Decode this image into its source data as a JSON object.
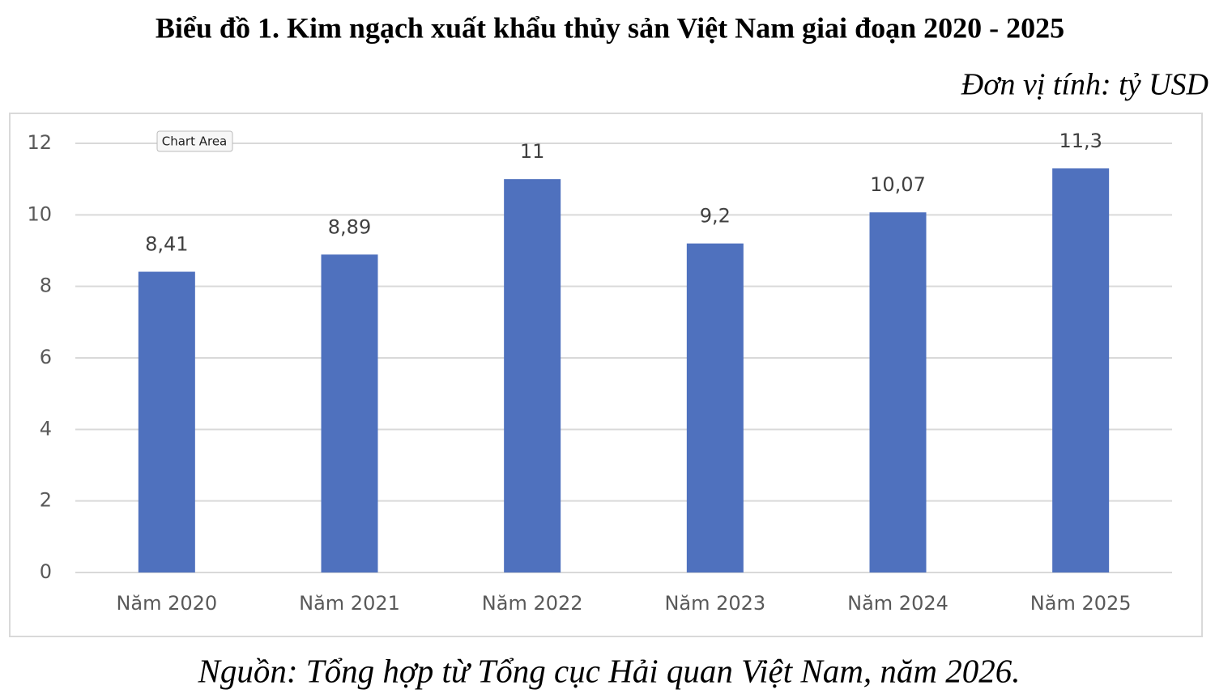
{
  "chart_data": {
    "type": "bar",
    "title": "Biểu đồ 1. Kim ngạch xuất khẩu thủy sản Việt Nam giai đoạn 2020 - 2025",
    "unit": "Đơn vị tính: tỷ USD",
    "source": "Nguồn: Tổng hợp từ Tổng cục Hải quan Việt Nam, năm 2026.",
    "tooltip": "Chart Area",
    "categories": [
      "Năm 2020",
      "Năm 2021",
      "Năm 2022",
      "Năm 2023",
      "Năm 2024",
      "Năm 2025"
    ],
    "values": [
      8.41,
      8.89,
      11,
      9.2,
      10.07,
      11.3
    ],
    "value_labels": [
      "8,41",
      "8,89",
      "11",
      "9,2",
      "10,07",
      "11,3"
    ],
    "color": "#4f71be",
    "ylim": [
      0,
      12
    ],
    "yticks": [
      0,
      2,
      4,
      6,
      8,
      10,
      12
    ],
    "grid": true
  }
}
